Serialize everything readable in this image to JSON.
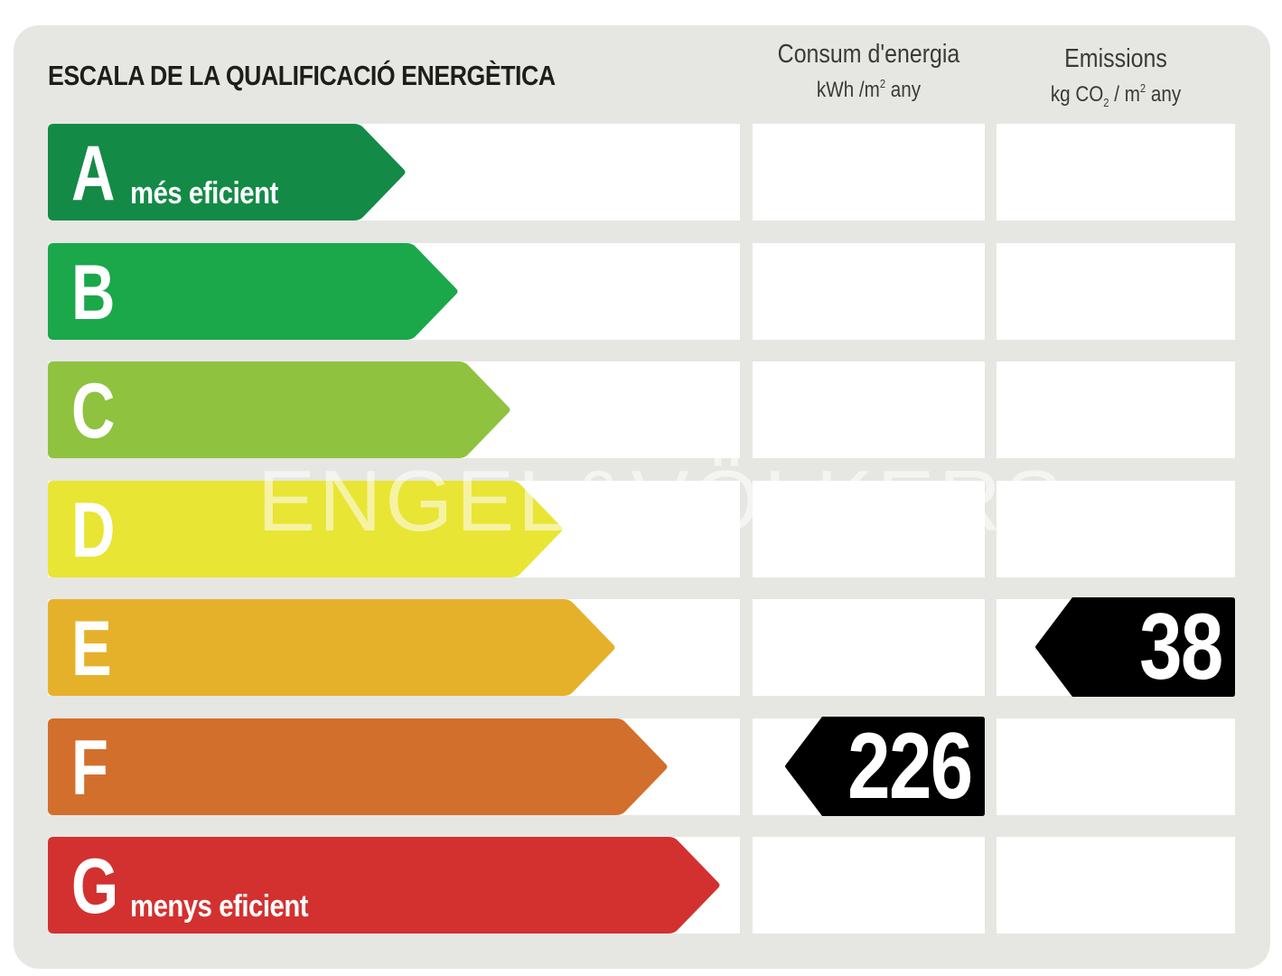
{
  "title": "ESCALA DE LA QUALIFICACIÓ ENERGÈTICA",
  "columns": {
    "energy": {
      "line1": "Consum d'energia",
      "unit_a": "kWh /m",
      "unit_sup": "2",
      "unit_b": " any"
    },
    "emissions": {
      "line1": "Emissions",
      "unit_a": "kg CO",
      "unit_sub": "2",
      "unit_c": " / m",
      "unit_sup": "2",
      "unit_b": " any"
    }
  },
  "classes": [
    {
      "letter": "A",
      "label": "més eficient",
      "color": "#148a47"
    },
    {
      "letter": "B",
      "label": "",
      "color": "#1aa84b"
    },
    {
      "letter": "C",
      "label": "",
      "color": "#8fc23f"
    },
    {
      "letter": "D",
      "label": "",
      "color": "#e8e534"
    },
    {
      "letter": "E",
      "label": "",
      "color": "#e6b12a"
    },
    {
      "letter": "F",
      "label": "",
      "color": "#d36f2c"
    },
    {
      "letter": "G",
      "label": "menys eficient",
      "color": "#d3312f"
    }
  ],
  "ratings": {
    "energy": {
      "class": "F",
      "value": "226"
    },
    "emissions": {
      "class": "E",
      "value": "38"
    }
  },
  "watermark": "ENGEL&VÖLKERS"
}
